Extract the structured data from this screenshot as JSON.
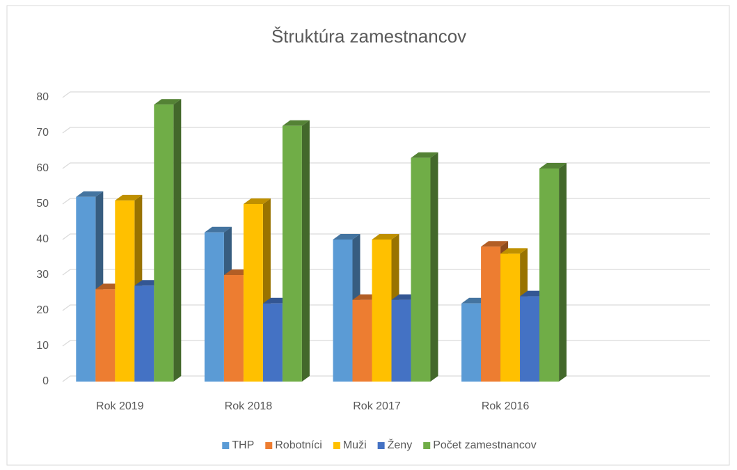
{
  "chart_data": {
    "type": "bar3d",
    "title": "Štruktúra zamestnancov",
    "categories": [
      "Rok 2019",
      "Rok 2018",
      "Rok 2017",
      "Rok 2016"
    ],
    "series": [
      {
        "name": "THP",
        "color": "#5b9bd5",
        "values": [
          52,
          42,
          40,
          22
        ]
      },
      {
        "name": "Robotníci",
        "color": "#ed7d31",
        "values": [
          26,
          30,
          23,
          38
        ]
      },
      {
        "name": "Muži",
        "color": "#ffc000",
        "values": [
          51,
          50,
          40,
          36
        ]
      },
      {
        "name": "Ženy",
        "color": "#4472c4",
        "values": [
          27,
          22,
          23,
          24
        ]
      },
      {
        "name": "Počet zamestnancov",
        "color": "#70ad47",
        "values": [
          78,
          72,
          63,
          60
        ]
      }
    ],
    "ylim": [
      0,
      80
    ],
    "yticks": [
      0,
      10,
      20,
      30,
      40,
      50,
      60,
      70,
      80
    ],
    "grid": true,
    "legend": "bottom"
  }
}
